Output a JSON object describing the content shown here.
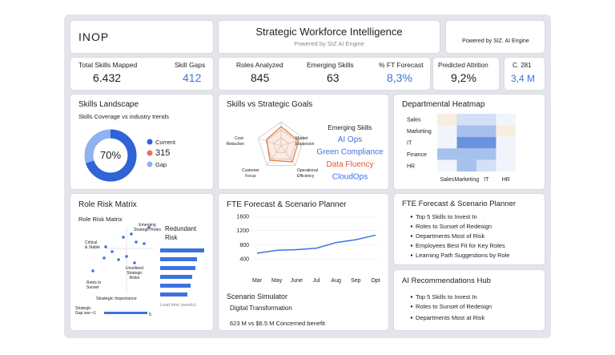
{
  "header": {
    "logo": "INOP",
    "title": "Strategic Workforce Intelligence",
    "subtitle": "Powered by SIZ AI Engine",
    "powered": "Powered by SIZ. AI Engine"
  },
  "kpis": {
    "total_skills": {
      "label": "Total Skills Mapped",
      "value": "6.432"
    },
    "skill_gaps": {
      "label": "Skill Gaps",
      "value": "412"
    },
    "roles": {
      "label": "Roles Analyzed",
      "value": "845"
    },
    "emerging": {
      "label": "Emerging Skills",
      "value": "63"
    },
    "forecast": {
      "label": "% FT Forecast",
      "value": "8,3%"
    },
    "attrition": {
      "label": "Predicted Attrition",
      "value": "9,2%"
    },
    "extra": {
      "label": "C. 281",
      "value": "3,4 M"
    }
  },
  "skills_landscape": {
    "title": "Skills Landscape",
    "subtitle": "Skills Coverage vs industry trends",
    "coverage": {
      "value": 70,
      "label": "70%"
    },
    "colors": [
      "#2f63d6",
      "#8fb2f0"
    ],
    "legend": [
      {
        "label": "Current",
        "color": "#2f63d6"
      },
      {
        "label": "315",
        "color": "#e8735a"
      },
      {
        "label": "Gap",
        "color": "#8fb2f0"
      }
    ]
  },
  "strategic_goals": {
    "title": "Skills vs Strategic Goals",
    "axes": [
      [
        "Cost-",
        "Reduction"
      ],
      [
        "Market",
        "Expansion"
      ],
      [
        "Operational",
        "Efficiency"
      ],
      [
        "Customer",
        "Focus"
      ]
    ],
    "list_title": "Emerging Skills",
    "skills": [
      {
        "label": "AI Ops",
        "color": "#3b73e0"
      },
      {
        "label": "Green Compliance",
        "color": "#3b73e0"
      },
      {
        "label": "Data Fluency",
        "color": "#e2552f"
      },
      {
        "label": "CloudOps",
        "color": "#3b73e0"
      }
    ]
  },
  "heatmap": {
    "title": "Departmental Heatmap",
    "rows": [
      "Sales",
      "Marketing",
      "IT",
      "Finance",
      "HR"
    ],
    "columns": [
      "Sales",
      "Marketing",
      "IT",
      "HR"
    ],
    "palette": [
      "#f1f5fb",
      "#d3e0f6",
      "#a7c1ee",
      "#6c92df",
      "#f7eedf"
    ],
    "cells": [
      [
        4,
        1,
        1,
        0
      ],
      [
        0,
        2,
        2,
        4
      ],
      [
        0,
        3,
        3,
        0
      ],
      [
        2,
        2,
        2,
        0
      ],
      [
        0,
        2,
        1,
        0
      ]
    ]
  },
  "role_risk": {
    "title": "Role Risk Matrix",
    "subtitle": "Role Risk Matrix",
    "quadrants": [
      [
        "Critical",
        "& Stable"
      ],
      [
        "Emerging",
        "Strategic Roles"
      ],
      [
        "Unutilised",
        "Strategic",
        "Roles"
      ],
      [
        "Roles to",
        "Sunset"
      ]
    ],
    "x_label": "Strategic Importance",
    "side_title": [
      "Redundant",
      "Risk"
    ],
    "side_note": "Lead time (weeks)",
    "gap_label": [
      "Strategic",
      "Gap see <1"
    ],
    "gap_value": "5"
  },
  "fte_chart": {
    "title": "FTE Forecast & Scenario Planner",
    "type": "line",
    "categories": [
      "Mar",
      "May",
      "June",
      "Jul",
      "Aug",
      "Sep",
      "Opt"
    ],
    "values": [
      560,
      640,
      660,
      700,
      860,
      940,
      1070
    ],
    "color": "#3b73e0",
    "ylim": [
      0,
      1600
    ],
    "yticks": [
      400,
      800,
      1200,
      1600
    ],
    "grid": true,
    "scenario_title": "Scenario Simulator",
    "scenario": "Digital Transformation",
    "benefit": "623 M vs $6.5 M Concerned benefit"
  },
  "planner_list": {
    "title": "FTE Forecast & Scenario Planner",
    "items": [
      "Top 5 Skills to Invest In",
      "Roles to Sunset of Redesign",
      "Departments Most of Risk",
      "Employees Best Fit for Key Roles",
      "Learning Path Suggestions by Role"
    ]
  },
  "ai_hub": {
    "title": "AI Recommendations Hub",
    "items": [
      "Top 5 Skills to Invest In",
      "Roles to Sunset of Redesign",
      "Departments Most at Risk"
    ]
  }
}
